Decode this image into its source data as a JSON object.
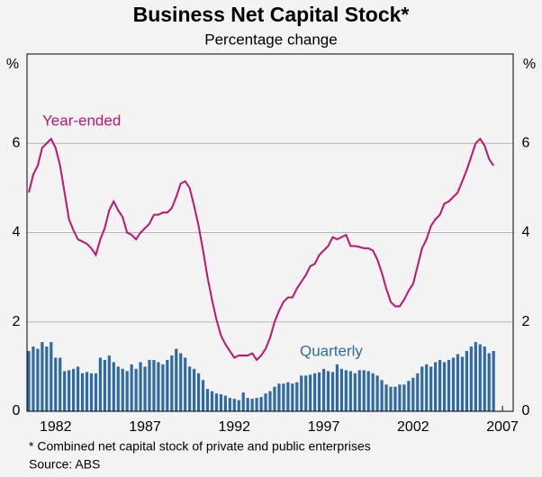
{
  "chart_data": {
    "type": "line-bar",
    "title": "Business Net Capital Stock*",
    "subtitle": "Percentage change",
    "y_label": "%",
    "footnote": "*   Combined net capital stock of private and public enterprises",
    "source": "Source: ABS",
    "xlim": [
      1980.4,
      2007.6
    ],
    "xticks": [
      1982,
      1987,
      1992,
      1997,
      2002,
      2007
    ],
    "ylim": [
      0,
      8
    ],
    "yticks": [
      0,
      2,
      4,
      6
    ],
    "grid": true,
    "x": [
      1980.5,
      1980.75,
      1981,
      1981.25,
      1981.5,
      1981.75,
      1982,
      1982.25,
      1982.5,
      1982.75,
      1983,
      1983.25,
      1983.5,
      1983.75,
      1984,
      1984.25,
      1984.5,
      1984.75,
      1985,
      1985.25,
      1985.5,
      1985.75,
      1986,
      1986.25,
      1986.5,
      1986.75,
      1987,
      1987.25,
      1987.5,
      1987.75,
      1988,
      1988.25,
      1988.5,
      1988.75,
      1989,
      1989.25,
      1989.5,
      1989.75,
      1990,
      1990.25,
      1990.5,
      1990.75,
      1991,
      1991.25,
      1991.5,
      1991.75,
      1992,
      1992.25,
      1992.5,
      1992.75,
      1993,
      1993.25,
      1993.5,
      1993.75,
      1994,
      1994.25,
      1994.5,
      1994.75,
      1995,
      1995.25,
      1995.5,
      1995.75,
      1996,
      1996.25,
      1996.5,
      1996.75,
      1997,
      1997.25,
      1997.5,
      1997.75,
      1998,
      1998.25,
      1998.5,
      1998.75,
      1999,
      1999.25,
      1999.5,
      1999.75,
      2000,
      2000.25,
      2000.5,
      2000.75,
      2001,
      2001.25,
      2001.5,
      2001.75,
      2002,
      2002.25,
      2002.5,
      2002.75,
      2003,
      2003.25,
      2003.5,
      2003.75,
      2004,
      2004.25,
      2004.5,
      2004.75,
      2005,
      2005.25,
      2005.5,
      2005.75,
      2006,
      2006.25,
      2006.5
    ],
    "series": [
      {
        "name": "Quarterly",
        "kind": "bar",
        "color": "#2f6aa6",
        "values": [
          1.35,
          1.45,
          1.4,
          1.55,
          1.45,
          1.55,
          1.2,
          1.2,
          0.9,
          0.92,
          0.95,
          1.0,
          0.85,
          0.88,
          0.85,
          0.85,
          1.2,
          1.15,
          1.25,
          1.1,
          1.0,
          0.95,
          0.9,
          1.05,
          0.95,
          1.1,
          1.0,
          1.15,
          1.15,
          1.1,
          1.05,
          1.15,
          1.25,
          1.4,
          1.3,
          1.2,
          1.0,
          0.95,
          0.85,
          0.7,
          0.5,
          0.45,
          0.4,
          0.38,
          0.35,
          0.3,
          0.28,
          0.25,
          0.42,
          0.3,
          0.28,
          0.3,
          0.32,
          0.4,
          0.45,
          0.55,
          0.62,
          0.62,
          0.65,
          0.62,
          0.65,
          0.8,
          0.8,
          0.82,
          0.85,
          0.87,
          0.95,
          0.9,
          0.88,
          1.05,
          0.95,
          0.92,
          0.9,
          0.85,
          0.92,
          0.92,
          0.9,
          0.85,
          0.8,
          0.7,
          0.6,
          0.55,
          0.55,
          0.6,
          0.6,
          0.68,
          0.75,
          0.85,
          1.0,
          1.05,
          1.0,
          1.1,
          1.15,
          1.1,
          1.15,
          1.2,
          1.28,
          1.22,
          1.35,
          1.45,
          1.55,
          1.5,
          1.45,
          1.3,
          1.35
        ]
      },
      {
        "name": "Year-ended",
        "kind": "line",
        "color": "#c0146e",
        "values": [
          4.9,
          5.3,
          5.5,
          5.9,
          6.0,
          6.1,
          5.9,
          5.5,
          4.9,
          4.3,
          4.05,
          3.85,
          3.8,
          3.75,
          3.65,
          3.5,
          3.85,
          4.1,
          4.5,
          4.7,
          4.5,
          4.35,
          4.0,
          3.95,
          3.85,
          4.0,
          4.1,
          4.2,
          4.4,
          4.4,
          4.45,
          4.45,
          4.55,
          4.8,
          5.1,
          5.15,
          5.0,
          4.6,
          4.15,
          3.6,
          3.0,
          2.5,
          2.05,
          1.7,
          1.5,
          1.35,
          1.2,
          1.25,
          1.25,
          1.25,
          1.3,
          1.15,
          1.25,
          1.4,
          1.65,
          2.0,
          2.25,
          2.45,
          2.55,
          2.55,
          2.75,
          2.9,
          3.05,
          3.25,
          3.3,
          3.5,
          3.6,
          3.7,
          3.9,
          3.85,
          3.9,
          3.95,
          3.7,
          3.7,
          3.68,
          3.65,
          3.65,
          3.6,
          3.4,
          3.1,
          2.75,
          2.45,
          2.35,
          2.35,
          2.5,
          2.7,
          2.85,
          3.25,
          3.65,
          3.85,
          4.15,
          4.3,
          4.4,
          4.65,
          4.7,
          4.8,
          4.9,
          5.15,
          5.4,
          5.7,
          6.0,
          6.1,
          5.95,
          5.65,
          5.5
        ]
      }
    ]
  }
}
